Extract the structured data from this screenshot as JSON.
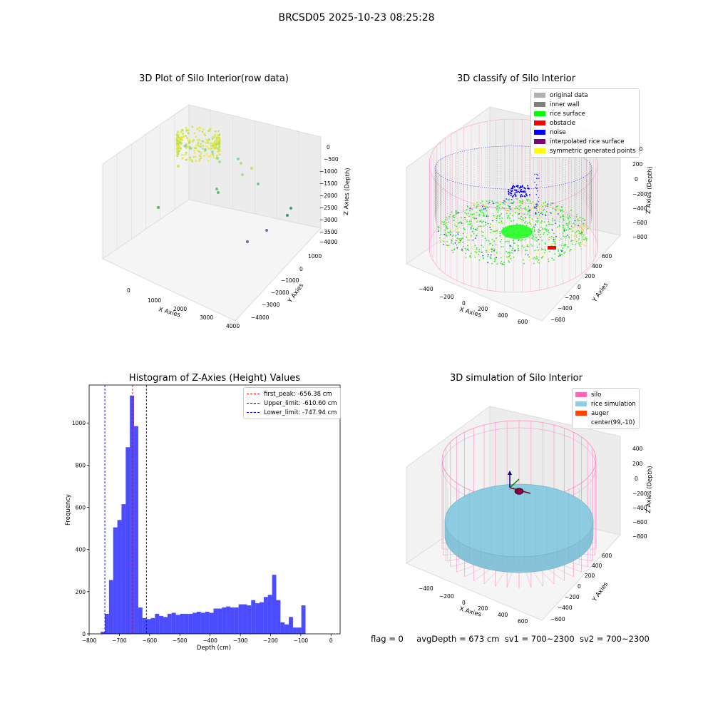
{
  "suptitle": "BRCSD05 2025-10-23 08:25:28",
  "panels": {
    "raw": {
      "title": "3D Plot of Silo Interior(row data)",
      "xlabel": "X Axies",
      "ylabel": "Y Axies",
      "zlabel": "Z Axies (Depth)",
      "xticks": [
        "0",
        "1000",
        "2000",
        "3000",
        "4000"
      ],
      "yticks": [
        "1000",
        "0",
        "−1000",
        "−2000",
        "−3000",
        "−4000"
      ],
      "zticks": [
        "0",
        "−500",
        "−1000",
        "−1500",
        "−2000",
        "−2500",
        "−3000",
        "−3500",
        "−4000"
      ]
    },
    "classify": {
      "title": "3D classify of Silo Interior",
      "xlabel": "X Axies",
      "ylabel": "Y Axies",
      "zlabel": "Z Axies (Depth)",
      "xticks": [
        "−400",
        "−200",
        "0",
        "200",
        "400",
        "600"
      ],
      "yticks": [
        "600",
        "400",
        "200",
        "0",
        "−200",
        "−400",
        "−600"
      ],
      "zticks": [
        "200",
        "0",
        "−200",
        "−400",
        "−600",
        "−800"
      ],
      "ztick_top": "400",
      "legend": [
        {
          "label": "original data",
          "color": "#b0b0b0"
        },
        {
          "label": "inner wall",
          "color": "#808080"
        },
        {
          "label": "rice surface",
          "color": "#00ff00"
        },
        {
          "label": "obstacle",
          "color": "#ff0000"
        },
        {
          "label": "noise",
          "color": "#0000ff"
        },
        {
          "label": "interpolated rice surface",
          "color": "#800080"
        },
        {
          "label": "symmetric generated points",
          "color": "#ffff00"
        }
      ]
    },
    "simulation": {
      "title": "3D simulation of Silo Interior",
      "xlabel": "X Axies",
      "ylabel": "Y Axies",
      "zlabel": "Z Axies (Depth)",
      "xticks": [
        "−400",
        "−200",
        "0",
        "200",
        "400",
        "600"
      ],
      "yticks": [
        "600",
        "400",
        "200",
        "0",
        "−200",
        "−400",
        "−600"
      ],
      "zticks": [
        "400",
        "200",
        "0",
        "−200",
        "−400",
        "−600",
        "−800"
      ],
      "legend": [
        {
          "label": "silo",
          "color": "#ff69b4"
        },
        {
          "label": "rice simulation",
          "color": "#87ceeb"
        },
        {
          "label": "auger",
          "color": "#ff4500"
        },
        {
          "label": "center(99,-10)",
          "color": "#ffffff"
        }
      ]
    }
  },
  "footer": {
    "flag": "flag = 0",
    "avg": "avgDepth = 673 cm",
    "sv1": "sv1 = 700~2300",
    "sv2": "sv2 = 700~2300"
  },
  "chart_data": [
    {
      "type": "bar",
      "title": "Histogram of Z-Axies (Height) Values",
      "xlabel": "Depth (cm)",
      "ylabel": "Frequency",
      "xlim": [
        -800,
        30
      ],
      "ylim": [
        0,
        1180
      ],
      "xticks": [
        -800,
        -700,
        -600,
        -500,
        -400,
        -300,
        -200,
        -100,
        0
      ],
      "yticks": [
        0,
        200,
        400,
        600,
        800,
        1000
      ],
      "bin_width": 13.83,
      "bin_start": -762,
      "values": [
        10,
        95,
        255,
        505,
        540,
        615,
        885,
        1130,
        985,
        125,
        75,
        70,
        75,
        95,
        85,
        80,
        95,
        100,
        90,
        95,
        95,
        95,
        100,
        105,
        100,
        105,
        100,
        120,
        120,
        125,
        130,
        125,
        125,
        140,
        140,
        135,
        160,
        145,
        150,
        175,
        185,
        280,
        160,
        55,
        45,
        80,
        30,
        30,
        135
      ],
      "color": "#0000ff",
      "vlines": [
        {
          "label": "first_peak: -656.38 cm",
          "x": -656.38,
          "color": "#ff0000"
        },
        {
          "label": "Upper_limit: -610.60 cm",
          "x": -610.6,
          "color": "#00008b"
        },
        {
          "label": "Lower_limit: -747.94 cm",
          "x": -747.94,
          "color": "#0000ff"
        }
      ],
      "legend_position": "top-right"
    }
  ]
}
